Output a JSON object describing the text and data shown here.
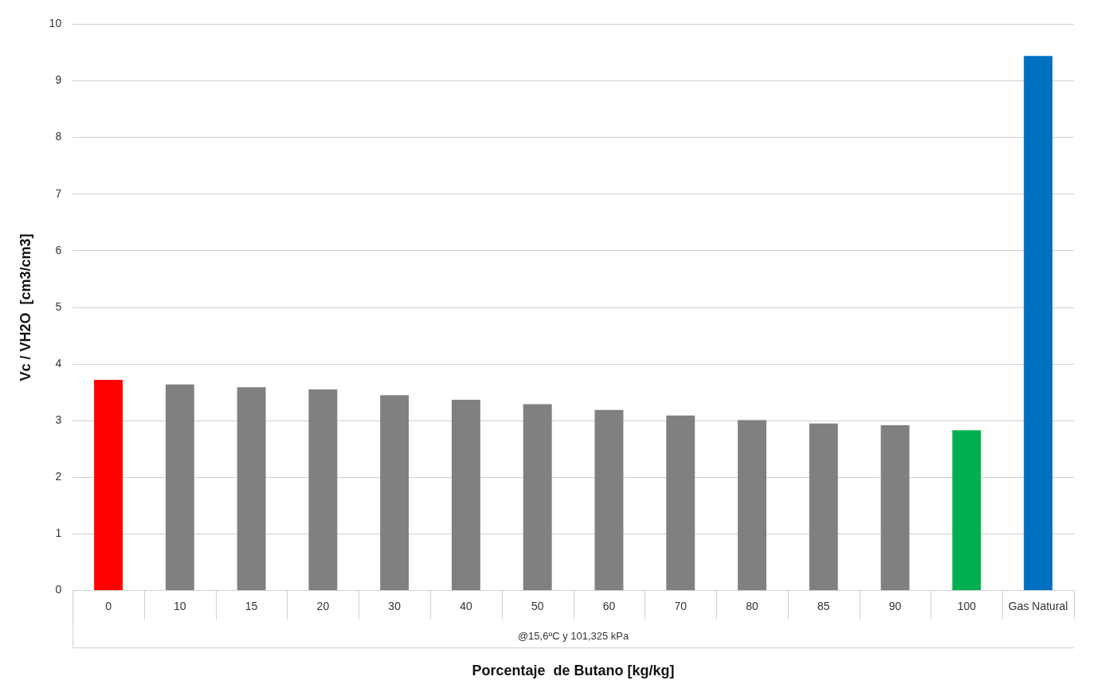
{
  "chart_data": {
    "type": "bar",
    "xlabel": "Porcentaje  de Butano [kg/kg]",
    "ylabel": "Vc / VH2O  [cm3/cm3]",
    "categories": [
      "0",
      "10",
      "15",
      "20",
      "30",
      "40",
      "50",
      "60",
      "70",
      "80",
      "85",
      "90",
      "100",
      "Gas Natural"
    ],
    "values": [
      3.72,
      3.64,
      3.59,
      3.55,
      3.45,
      3.37,
      3.29,
      3.19,
      3.09,
      3.01,
      2.95,
      2.92,
      2.83,
      9.44
    ],
    "colors": [
      "#ff0000",
      "#808080",
      "#808080",
      "#808080",
      "#808080",
      "#808080",
      "#808080",
      "#808080",
      "#808080",
      "#808080",
      "#808080",
      "#808080",
      "#00b050",
      "#0070c0"
    ],
    "ylim": [
      0,
      10
    ],
    "yticks": [
      0,
      1,
      2,
      3,
      4,
      5,
      6,
      7,
      8,
      9,
      10
    ],
    "grid": "y",
    "legend": false,
    "annotations": [
      "@15,6ºC y 101,325 kPa"
    ]
  }
}
